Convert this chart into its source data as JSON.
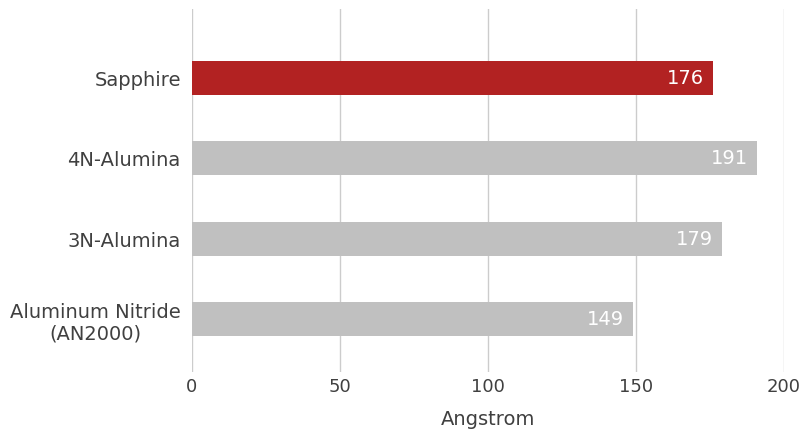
{
  "categories": [
    "Aluminum Nitride\n(AN2000)",
    "3N-Alumina",
    "4N-Alumina",
    "Sapphire"
  ],
  "values": [
    149,
    179,
    191,
    176
  ],
  "bar_colors": [
    "#c0c0c0",
    "#c0c0c0",
    "#c0c0c0",
    "#b22222"
  ],
  "value_labels": [
    "149",
    "179",
    "191",
    "176"
  ],
  "xlabel": "Angstrom",
  "xlim": [
    0,
    200
  ],
  "xticks": [
    0,
    50,
    100,
    150,
    200
  ],
  "background_color": "#ffffff",
  "bar_height": 0.42,
  "label_fontsize": 14,
  "value_fontsize": 14,
  "xlabel_fontsize": 14,
  "tick_fontsize": 13,
  "grid_color": "#cccccc",
  "text_color": "#ffffff",
  "yticklabel_color": "#404040"
}
